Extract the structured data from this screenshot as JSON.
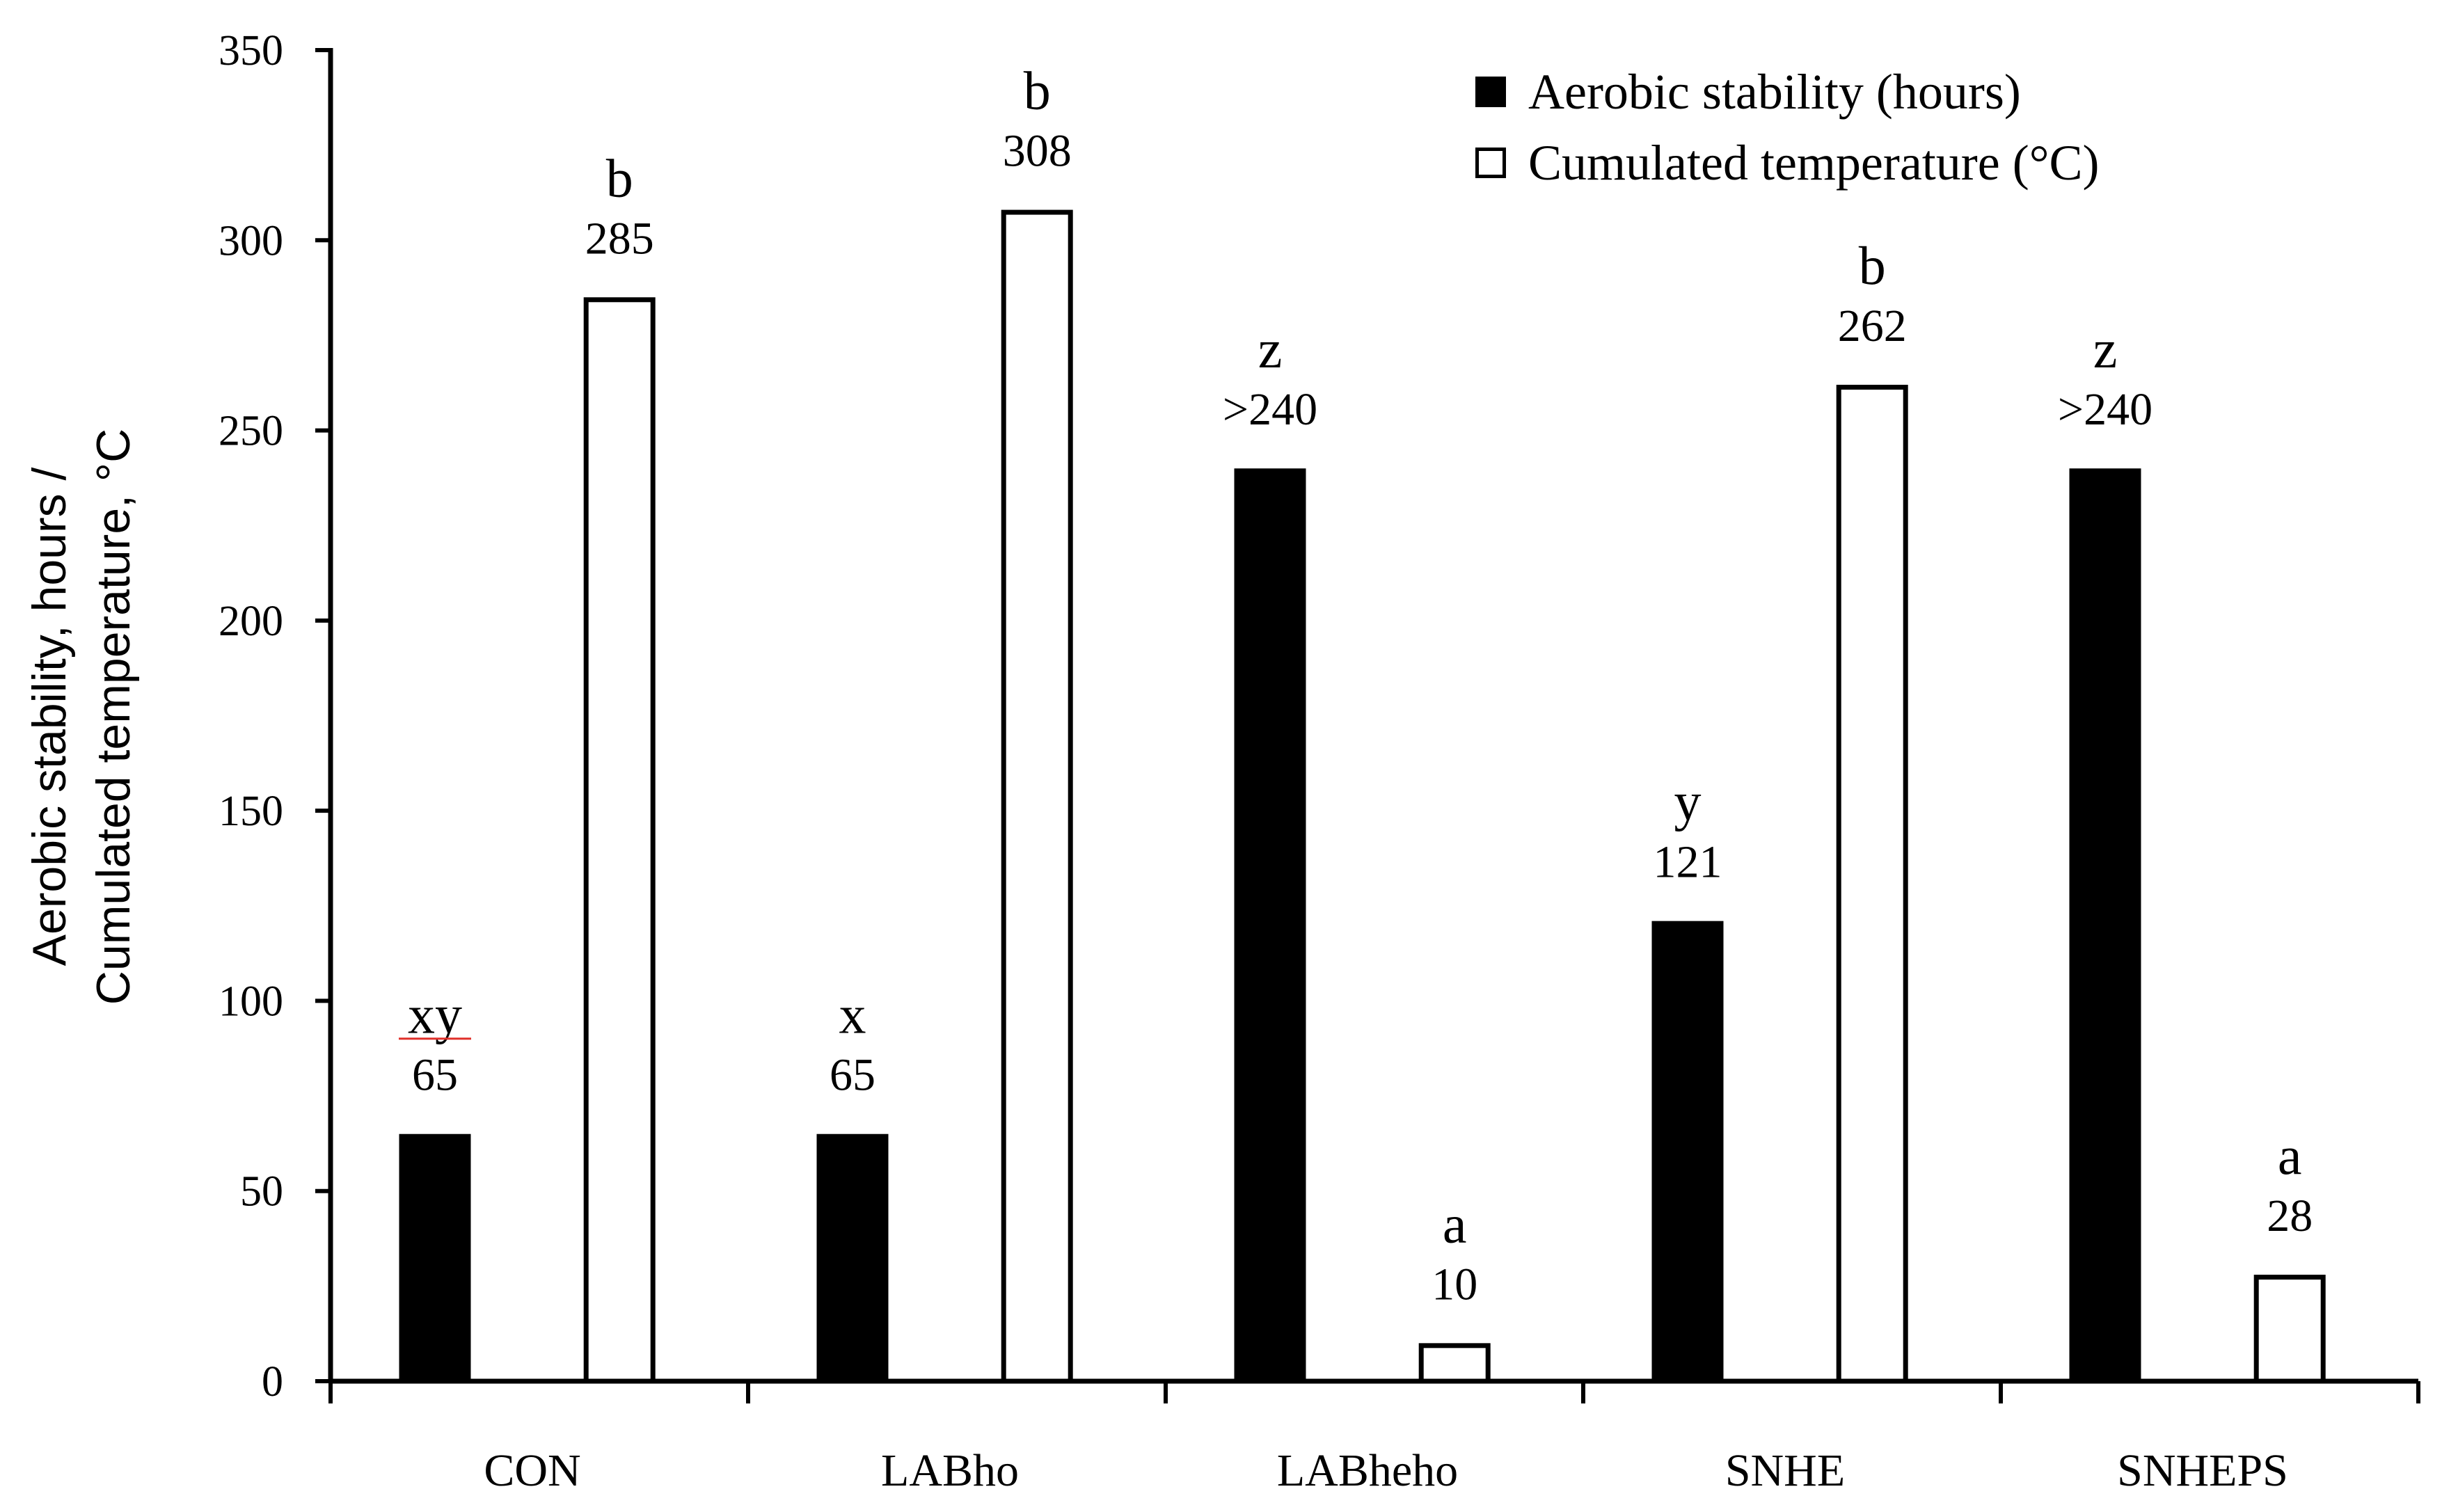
{
  "chart_data": {
    "type": "bar",
    "title": "",
    "xlabel": "",
    "ylabel": [
      "Aerobic stability, hours /",
      "Cumulated temperature, °C"
    ],
    "ylim": [
      0,
      350
    ],
    "yticks": [
      0,
      50,
      100,
      150,
      200,
      250,
      300,
      350
    ],
    "categories": [
      "CON",
      "LABho",
      "LABheho",
      "SNHE",
      "SNHEPS"
    ],
    "series": [
      {
        "name": "Aerobic stability (hours)",
        "fill": "#000000",
        "values": [
          65,
          65,
          240,
          121,
          240
        ],
        "value_labels": [
          "65",
          "65",
          ">240",
          "121",
          ">240"
        ],
        "letters": [
          "xy",
          "x",
          "z",
          "y",
          "z"
        ]
      },
      {
        "name": "Cumulated temperature (°C)",
        "fill": "#ffffff",
        "values": [
          285,
          308,
          10,
          262,
          28
        ],
        "value_labels": [
          "285",
          "308",
          "10",
          "262",
          "28"
        ],
        "letters": [
          "b",
          "b",
          "a",
          "b",
          "a"
        ]
      }
    ],
    "legend": "top-right",
    "grid": false
  }
}
